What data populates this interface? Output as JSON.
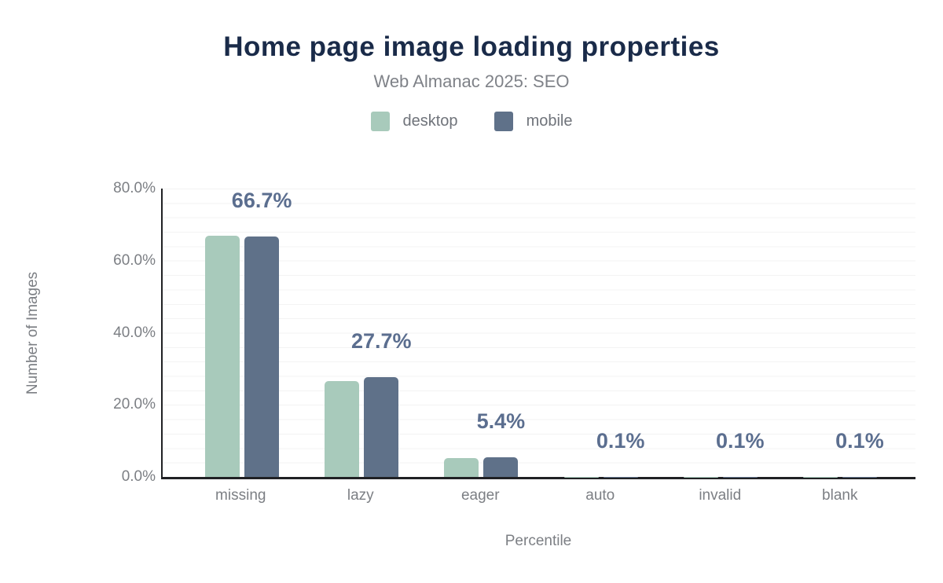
{
  "header": {
    "title": "Home page image loading properties",
    "subtitle": "Web Almanac 2025: SEO"
  },
  "legend": [
    {
      "label": "desktop",
      "color": "#a8cabb"
    },
    {
      "label": "mobile",
      "color": "#5f7189"
    }
  ],
  "chart_data": {
    "type": "bar",
    "title": "Home page image loading properties",
    "subtitle": "Web Almanac 2025: SEO",
    "categories": [
      "missing",
      "lazy",
      "eager",
      "auto",
      "invalid",
      "blank"
    ],
    "series": [
      {
        "name": "desktop",
        "color": "#a8cabb",
        "values": [
          67.0,
          26.7,
          5.2,
          0.1,
          0.1,
          0.1
        ]
      },
      {
        "name": "mobile",
        "color": "#5f7189",
        "values": [
          66.7,
          27.7,
          5.4,
          0.1,
          0.1,
          0.1
        ]
      }
    ],
    "data_labels": [
      "66.7%",
      "27.7%",
      "5.4%",
      "0.1%",
      "0.1%",
      "0.1%"
    ],
    "xlabel": "Percentile",
    "ylabel": "Number of Images",
    "ylim": [
      0,
      80
    ],
    "y_ticks": [
      "80.0%",
      "60.0%",
      "40.0%",
      "20.0%",
      "0.0%"
    ],
    "grid": "horizontal-minor-every-4pct",
    "legend_position": "top"
  },
  "colors": {
    "title": "#1a2b49",
    "subtitle": "#7f8288",
    "axis_text": "#7c7f84",
    "data_label": "#5b6e8f",
    "axis_line": "#202124",
    "gridline": "#f3f3f3",
    "background": "#ffffff"
  }
}
